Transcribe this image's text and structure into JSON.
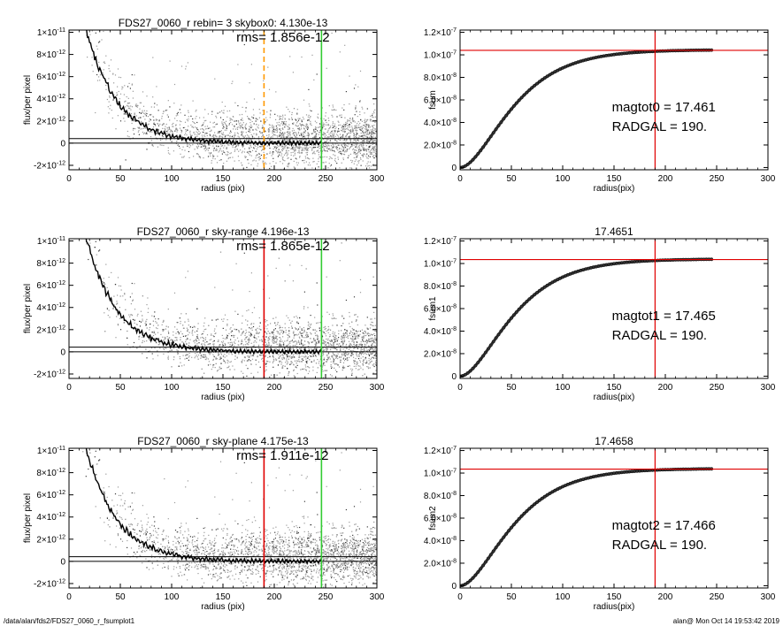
{
  "footer": {
    "path": "/data/alan/fds2/FDS27_0060_r_fsumplot1",
    "user_time": "alan@  Mon Oct 14 19:53:42 2019"
  },
  "colors": {
    "profile": "#000000",
    "scatter": "#9a9a9a",
    "sky_line": "#000000",
    "green": "#33cc33",
    "orange": "#ff9900",
    "red": "#e00000",
    "curve": "#333333"
  },
  "chart_data": [
    {
      "type": "scatter",
      "title": "FDS27_0060_r rebin= 3    skybox0:  4.130e-13",
      "annotation": "rms= 1.856e-12",
      "xlabel": "radius (pix)",
      "ylabel": "flux/per pixel",
      "xlim": [
        0,
        300
      ],
      "ylim": [
        -2.4e-12,
        1.02e-11
      ],
      "xticks": [
        "0",
        "50",
        "100",
        "150",
        "200",
        "250",
        "300"
      ],
      "yticks": [
        {
          "value": 1e-11,
          "mant": "1×10",
          "exp": "-11"
        },
        {
          "value": 8e-12,
          "mant": "8×10",
          "exp": "-12"
        },
        {
          "value": 6e-12,
          "mant": "6×10",
          "exp": "-12"
        },
        {
          "value": 4e-12,
          "mant": "4×10",
          "exp": "-12"
        },
        {
          "value": 2e-12,
          "mant": "2×10",
          "exp": "-12"
        },
        {
          "value": 0,
          "mant": "0",
          "exp": ""
        },
        {
          "value": -2e-12,
          "mant": "-2×10",
          "exp": "-12"
        }
      ],
      "sky_lines": [
        4.13e-13,
        0
      ],
      "vlines": [
        {
          "x": 190,
          "color": "orange",
          "dashed": true
        },
        {
          "x": 246,
          "color": "green",
          "dashed": false
        }
      ],
      "profile_end": 246
    },
    {
      "type": "line",
      "title": "",
      "annotation_lines": [
        "magtot0 =  17.461",
        "RADGAL =    190."
      ],
      "xlabel": "radius(pix)",
      "ylabel": "fsum",
      "xlim": [
        0,
        300
      ],
      "ylim": [
        -2e-09,
        1.22e-07
      ],
      "xticks": [
        "0",
        "50",
        "100",
        "150",
        "200",
        "250",
        "300"
      ],
      "yticks": [
        {
          "value": 1.2e-07,
          "mant": "1.2×10",
          "exp": "-7"
        },
        {
          "value": 1e-07,
          "mant": "1.0×10",
          "exp": "-7"
        },
        {
          "value": 8e-08,
          "mant": "8.0×10",
          "exp": "-8"
        },
        {
          "value": 6e-08,
          "mant": "6.0×10",
          "exp": "-8"
        },
        {
          "value": 4e-08,
          "mant": "4.0×10",
          "exp": "-8"
        },
        {
          "value": 2e-08,
          "mant": "2.0×10",
          "exp": "-8"
        },
        {
          "value": 0,
          "mant": "0",
          "exp": ""
        }
      ],
      "hline": 1.04e-07,
      "vline": 190,
      "curve_end": 246,
      "asymptote": 1.045e-07
    },
    {
      "type": "scatter",
      "title": "FDS27_0060_r sky-range  4.196e-13",
      "annotation": "rms= 1.865e-12",
      "xlabel": "radius (pix)",
      "ylabel": "flux/per pixel",
      "xlim": [
        0,
        300
      ],
      "ylim": [
        -2.4e-12,
        1.02e-11
      ],
      "xticks": [
        "0",
        "50",
        "100",
        "150",
        "200",
        "250",
        "300"
      ],
      "yticks": [
        {
          "value": 1e-11,
          "mant": "1×10",
          "exp": "-11"
        },
        {
          "value": 8e-12,
          "mant": "8×10",
          "exp": "-12"
        },
        {
          "value": 6e-12,
          "mant": "6×10",
          "exp": "-12"
        },
        {
          "value": 4e-12,
          "mant": "4×10",
          "exp": "-12"
        },
        {
          "value": 2e-12,
          "mant": "2×10",
          "exp": "-12"
        },
        {
          "value": 0,
          "mant": "0",
          "exp": ""
        },
        {
          "value": -2e-12,
          "mant": "-2×10",
          "exp": "-12"
        }
      ],
      "sky_lines": [
        4.196e-13,
        0
      ],
      "vlines": [
        {
          "x": 190,
          "color": "red",
          "dashed": false
        },
        {
          "x": 246,
          "color": "green",
          "dashed": false
        }
      ],
      "profile_end": 246
    },
    {
      "type": "line",
      "title": "17.4651",
      "annotation_lines": [
        "magtot1 =  17.465",
        "RADGAL =    190."
      ],
      "xlabel": "radius(pix)",
      "ylabel": "fsum1",
      "xlim": [
        0,
        300
      ],
      "ylim": [
        -2e-09,
        1.22e-07
      ],
      "xticks": [
        "0",
        "50",
        "100",
        "150",
        "200",
        "250",
        "300"
      ],
      "yticks": [
        {
          "value": 1.2e-07,
          "mant": "1.2×10",
          "exp": "-7"
        },
        {
          "value": 1e-07,
          "mant": "1.0×10",
          "exp": "-7"
        },
        {
          "value": 8e-08,
          "mant": "8.0×10",
          "exp": "-8"
        },
        {
          "value": 6e-08,
          "mant": "6.0×10",
          "exp": "-8"
        },
        {
          "value": 4e-08,
          "mant": "4.0×10",
          "exp": "-8"
        },
        {
          "value": 2e-08,
          "mant": "2.0×10",
          "exp": "-8"
        },
        {
          "value": 0,
          "mant": "0",
          "exp": ""
        }
      ],
      "hline": 1.035e-07,
      "vline": 190,
      "curve_end": 246,
      "asymptote": 1.04e-07
    },
    {
      "type": "scatter",
      "title": "FDS27_0060_r sky-plane  4.175e-13",
      "annotation": "rms= 1.911e-12",
      "xlabel": "radius (pix)",
      "ylabel": "flux/per pixel",
      "xlim": [
        0,
        300
      ],
      "ylim": [
        -2.4e-12,
        1.02e-11
      ],
      "xticks": [
        "0",
        "50",
        "100",
        "150",
        "200",
        "250",
        "300"
      ],
      "yticks": [
        {
          "value": 1e-11,
          "mant": "1×10",
          "exp": "-11"
        },
        {
          "value": 8e-12,
          "mant": "8×10",
          "exp": "-12"
        },
        {
          "value": 6e-12,
          "mant": "6×10",
          "exp": "-12"
        },
        {
          "value": 4e-12,
          "mant": "4×10",
          "exp": "-12"
        },
        {
          "value": 2e-12,
          "mant": "2×10",
          "exp": "-12"
        },
        {
          "value": 0,
          "mant": "0",
          "exp": ""
        },
        {
          "value": -2e-12,
          "mant": "-2×10",
          "exp": "-12"
        }
      ],
      "sky_lines": [
        4.175e-13,
        0
      ],
      "vlines": [
        {
          "x": 190,
          "color": "red",
          "dashed": false
        },
        {
          "x": 246,
          "color": "green",
          "dashed": false
        }
      ],
      "profile_end": 246
    },
    {
      "type": "line",
      "title": "17.4658",
      "annotation_lines": [
        "magtot2 =  17.466",
        "RADGAL =    190."
      ],
      "xlabel": "radius(pix)",
      "ylabel": "fsum2",
      "xlim": [
        0,
        300
      ],
      "ylim": [
        -2e-09,
        1.22e-07
      ],
      "xticks": [
        "0",
        "50",
        "100",
        "150",
        "200",
        "250",
        "300"
      ],
      "yticks": [
        {
          "value": 1.2e-07,
          "mant": "1.2×10",
          "exp": "-7"
        },
        {
          "value": 1e-07,
          "mant": "1.0×10",
          "exp": "-7"
        },
        {
          "value": 8e-08,
          "mant": "8.0×10",
          "exp": "-8"
        },
        {
          "value": 6e-08,
          "mant": "6.0×10",
          "exp": "-8"
        },
        {
          "value": 4e-08,
          "mant": "4.0×10",
          "exp": "-8"
        },
        {
          "value": 2e-08,
          "mant": "2.0×10",
          "exp": "-8"
        },
        {
          "value": 0,
          "mant": "0",
          "exp": ""
        }
      ],
      "hline": 1.035e-07,
      "vline": 190,
      "curve_end": 246,
      "asymptote": 1.04e-07
    }
  ]
}
